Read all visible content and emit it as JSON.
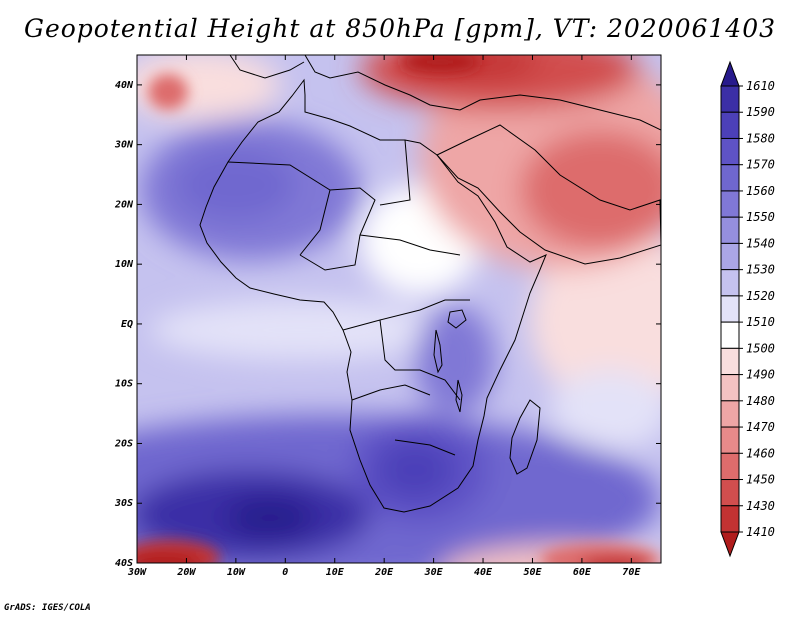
{
  "title": "Geopotential Height at 850hPa [gpm], VT: 2020061403",
  "footer": "GrADS: IGES/COLA",
  "chart_data": {
    "type": "heatmap",
    "title": "Geopotential Height at 850hPa [gpm], VT: 2020061403",
    "variable": "Geopotential Height",
    "level": "850hPa",
    "units": "gpm",
    "valid_time": "2020061403",
    "x_range_deg": [
      -30,
      76
    ],
    "y_range_deg": [
      -40,
      45
    ],
    "x_ticks": [
      {
        "value": -30,
        "label": "30W"
      },
      {
        "value": -20,
        "label": "20W"
      },
      {
        "value": -10,
        "label": "10W"
      },
      {
        "value": 0,
        "label": "0"
      },
      {
        "value": 10,
        "label": "10E"
      },
      {
        "value": 20,
        "label": "20E"
      },
      {
        "value": 30,
        "label": "30E"
      },
      {
        "value": 40,
        "label": "40E"
      },
      {
        "value": 50,
        "label": "50E"
      },
      {
        "value": 60,
        "label": "60E"
      },
      {
        "value": 70,
        "label": "70E"
      }
    ],
    "y_ticks": [
      {
        "value": 40,
        "label": "40N"
      },
      {
        "value": 30,
        "label": "30N"
      },
      {
        "value": 20,
        "label": "20N"
      },
      {
        "value": 10,
        "label": "10N"
      },
      {
        "value": 0,
        "label": "EQ"
      },
      {
        "value": -10,
        "label": "10S"
      },
      {
        "value": -20,
        "label": "20S"
      },
      {
        "value": -30,
        "label": "30S"
      },
      {
        "value": -40,
        "label": "40S"
      }
    ],
    "colorbar_levels": [
      1610,
      1590,
      1580,
      1570,
      1560,
      1550,
      1540,
      1530,
      1520,
      1510,
      1500,
      1490,
      1480,
      1470,
      1460,
      1450,
      1430,
      1410
    ],
    "colorbar_colors": [
      "#271a8c",
      "#3b2fa6",
      "#4c40b8",
      "#5e53c6",
      "#6f67cf",
      "#8078d6",
      "#958fde",
      "#aba6e6",
      "#c5c2ef",
      "#e3e2f8",
      "#ffffff",
      "#f9dede",
      "#f4c2c2",
      "#eea6a6",
      "#e78a8a",
      "#dd6c6c",
      "#d14e4e",
      "#c23232",
      "#b01c1c"
    ],
    "features": [
      {
        "name": "high over southern Atlantic",
        "lon": -5,
        "lat": -32,
        "value": 1610
      },
      {
        "name": "high over southern Africa",
        "lon": 27,
        "lat": -25,
        "value": 1590
      },
      {
        "name": "high over Sahara / NW Africa",
        "lon": -5,
        "lat": 23,
        "value": 1570
      },
      {
        "name": "low over Middle East / Arabia",
        "lon": 50,
        "lat": 28,
        "value": 1450
      },
      {
        "name": "low over eastern Mediterranean",
        "lon": 35,
        "lat": 42,
        "value": 1430
      },
      {
        "name": "low near 40S 25W",
        "lon": -25,
        "lat": -39,
        "value": 1410
      },
      {
        "name": "low near 40S 65E",
        "lon": 65,
        "lat": -39,
        "value": 1430
      },
      {
        "name": "low near 40N 25W",
        "lon": -25,
        "lat": 42,
        "value": 1480
      },
      {
        "name": "Indian Ocean ridge edge",
        "lon": 70,
        "lat": -5,
        "value": 1500
      }
    ]
  }
}
